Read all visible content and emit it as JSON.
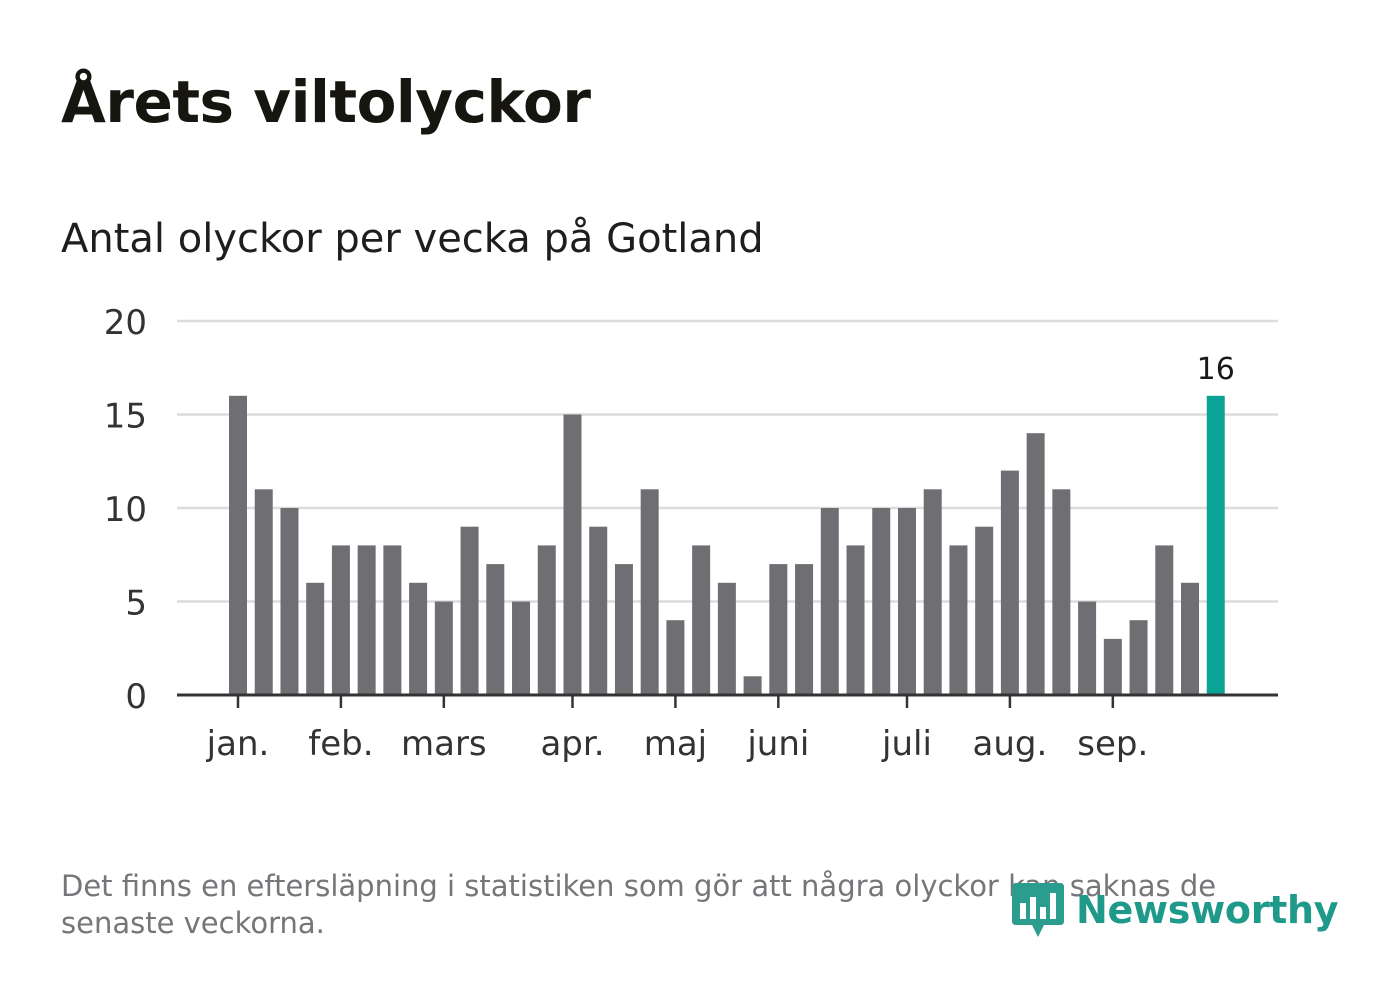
{
  "header": {
    "title": "Årets viltolyckor",
    "subtitle": "Antal olyckor per vecka på Gotland"
  },
  "chart_data": {
    "type": "bar",
    "ylim": [
      0,
      20
    ],
    "yticks": [
      0,
      5,
      10,
      15,
      20
    ],
    "grid": true,
    "values": [
      16,
      11,
      10,
      6,
      8,
      8,
      8,
      6,
      5,
      9,
      7,
      5,
      8,
      15,
      9,
      7,
      11,
      4,
      8,
      6,
      1,
      7,
      7,
      10,
      8,
      10,
      10,
      11,
      8,
      9,
      12,
      14,
      11,
      5,
      3,
      4,
      8,
      6,
      16
    ],
    "month_labels": [
      {
        "label": "jan.",
        "bar_index": 0
      },
      {
        "label": "feb.",
        "bar_index": 4
      },
      {
        "label": "mars",
        "bar_index": 8
      },
      {
        "label": "apr.",
        "bar_index": 13
      },
      {
        "label": "maj",
        "bar_index": 17
      },
      {
        "label": "juni",
        "bar_index": 21
      },
      {
        "label": "juli",
        "bar_index": 26
      },
      {
        "label": "aug.",
        "bar_index": 30
      },
      {
        "label": "sep.",
        "bar_index": 34
      }
    ],
    "highlight_index": 38,
    "highlight_label": "16",
    "bar_color": "#6f6e73",
    "highlight_color": "#0aa396",
    "grid_color": "#dcdcdc",
    "axis_color": "#333333"
  },
  "footer": {
    "note": "Det finns en eftersläpning i statistiken som gör att några olyckor kan saknas de senaste veckorna.",
    "brand": "Newsworthy",
    "brand_color": "#1f9a8a"
  }
}
